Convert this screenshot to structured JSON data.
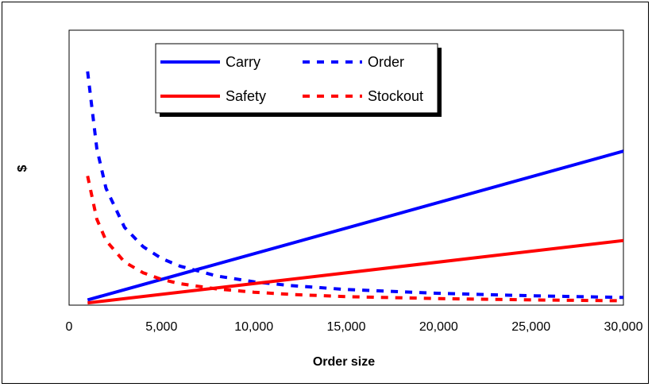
{
  "chart_data": {
    "type": "line",
    "title": "",
    "xlabel": "Order size",
    "ylabel": "$",
    "xlim": [
      0,
      30000
    ],
    "ylim": [
      0,
      100
    ],
    "x_ticks": [
      0,
      5000,
      10000,
      15000,
      20000,
      25000,
      30000
    ],
    "x_tick_labels": [
      "0",
      "5,000",
      "10,000",
      "15,000",
      "20,000",
      "25,000",
      "30,000"
    ],
    "y_ticks_shown": false,
    "grid": false,
    "legend_position": "top-left",
    "series": [
      {
        "name": "Carry",
        "color": "#0000ff",
        "dash": "solid",
        "x": [
          1000,
          30000
        ],
        "y": [
          1.9,
          56
        ]
      },
      {
        "name": "Order",
        "color": "#0000ff",
        "dash": "dashed",
        "x": [
          1000,
          1500,
          2000,
          3000,
          4000,
          5000,
          6000,
          8000,
          10000,
          12000,
          15000,
          20000,
          25000,
          30000
        ],
        "y": [
          85,
          57,
          42.5,
          28.3,
          21.3,
          17,
          14.2,
          10.6,
          8.5,
          7.1,
          5.7,
          4.3,
          3.4,
          2.8
        ]
      },
      {
        "name": "Safety",
        "color": "#ff0000",
        "dash": "solid",
        "x": [
          1000,
          30000
        ],
        "y": [
          0.8,
          23.5
        ]
      },
      {
        "name": "Stockout",
        "color": "#ff0000",
        "dash": "dashed",
        "x": [
          1000,
          1500,
          2000,
          3000,
          4000,
          5000,
          6000,
          8000,
          10000,
          12000,
          15000,
          20000,
          25000,
          30000
        ],
        "y": [
          47,
          31.3,
          23.5,
          15.7,
          11.8,
          9.4,
          7.8,
          5.9,
          4.7,
          3.9,
          3.1,
          2.4,
          1.9,
          1.6
        ]
      }
    ]
  }
}
